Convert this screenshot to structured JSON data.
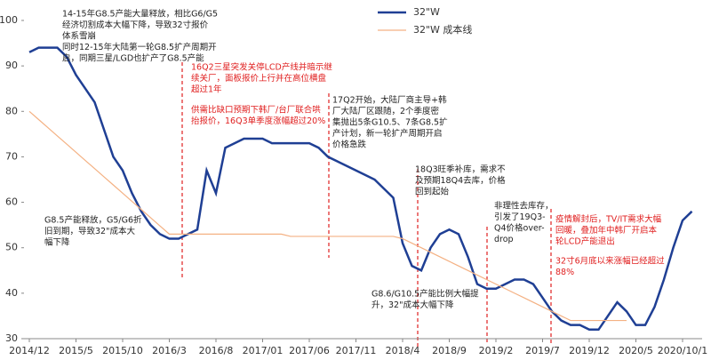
{
  "chart_data": {
    "type": "line",
    "categories": [
      "2014/12",
      null,
      null,
      null,
      null,
      "2015/5",
      null,
      null,
      null,
      null,
      "2015/10",
      null,
      null,
      null,
      null,
      "2016/3",
      null,
      null,
      null,
      null,
      "2016/8",
      null,
      null,
      null,
      null,
      "2017/01",
      null,
      null,
      null,
      null,
      "2017/06",
      null,
      null,
      null,
      null,
      "2017/11",
      null,
      null,
      null,
      null,
      "2018/4",
      null,
      null,
      null,
      null,
      "2018/9",
      null,
      null,
      null,
      null,
      "2019/2",
      null,
      null,
      null,
      null,
      "2019/7",
      null,
      null,
      null,
      null,
      "2019/12",
      null,
      null,
      null,
      null,
      "2020/5",
      null,
      null,
      null,
      null,
      "2020/10/1",
      null
    ],
    "series": [
      {
        "name": "32\"W",
        "color": "#1f3f94",
        "values": [
          93,
          94,
          94,
          94,
          92,
          88,
          85,
          82,
          76,
          70,
          67,
          62,
          58,
          55,
          53,
          52,
          52,
          53,
          54,
          67,
          62,
          72,
          73,
          74,
          74,
          74,
          73,
          73,
          73,
          73,
          73,
          72,
          70,
          69,
          68,
          67,
          66,
          65,
          63,
          61,
          51,
          46,
          45,
          50,
          53,
          54,
          53,
          48,
          42,
          41,
          41,
          42,
          43,
          43,
          42,
          39,
          36,
          34,
          33,
          33,
          32,
          32,
          35,
          38,
          36,
          33,
          33,
          37,
          43,
          50,
          56,
          58
        ]
      },
      {
        "name": "32\"W 成本线",
        "color": "#f4b183",
        "values": [
          80,
          78.2,
          76.4,
          74.6,
          72.8,
          71,
          69.2,
          67.4,
          65.6,
          63.8,
          62,
          60.2,
          58.4,
          56.6,
          54.8,
          53,
          53,
          53,
          53,
          53,
          53,
          53,
          53,
          53,
          53,
          53,
          53,
          53,
          52.5,
          52.5,
          52.5,
          52.5,
          52.5,
          52.5,
          52.5,
          52.5,
          52.5,
          52.5,
          52.5,
          52.5,
          52,
          51,
          50,
          49,
          48,
          47,
          46,
          45,
          44,
          43,
          42,
          41,
          40,
          39,
          38,
          37,
          36,
          35,
          34,
          34,
          34,
          34,
          34,
          34,
          34,
          null,
          null,
          null,
          null,
          null,
          null,
          null
        ]
      }
    ],
    "ylim": [
      30,
      100
    ],
    "yticks": [
      30,
      40,
      50,
      60,
      70,
      80,
      90,
      100
    ],
    "legend": "top-right",
    "annotations": [
      {
        "color": "#222222",
        "lines": [
          "14-15年G8.5产能大量释放，相比G6/G5",
          "经济切割成本大幅下降，导致32寸报价",
          "体系雪崩",
          "同时12-15年大陆第一轮G8.5扩产周期开",
          "启，同期三星/LGD也扩产了G8.5产能"
        ]
      },
      {
        "color": "#222222",
        "lines": [
          "G8.5产能释放，G5/G6折",
          "旧到期，导致32\"成本大",
          "幅下降"
        ]
      },
      {
        "color": "#e02020",
        "lines": [
          "16Q2三星突发关停LCD产线并暗示继",
          "续关厂，面板报价上行并在高位横盘",
          "超过1年"
        ]
      },
      {
        "color": "#e02020",
        "lines": [
          "供需比缺口预期下韩厂/台厂联合哄",
          "抬报价，16Q3单季度涨幅超过20%"
        ]
      },
      {
        "color": "#222222",
        "lines": [
          "17Q2开始，大陆厂商主导+韩",
          "厂大陆厂区跟随，2个季度密",
          "集抛出5条G10.5、7条G8.5扩",
          "产计划，新一轮扩产周期开启",
          "价格急跌"
        ]
      },
      {
        "color": "#222222",
        "lines": [
          "18Q3旺季补库，需求不",
          "及预期18Q4去库，价格",
          "回到起始"
        ]
      },
      {
        "color": "#222222",
        "lines": [
          "G8.6/G10.5产能比例大幅提",
          "升，32\"成本大幅下降"
        ]
      },
      {
        "color": "#222222",
        "lines": [
          "非理性去库存，",
          "引发了19Q3-",
          "Q4价格over-",
          "drop"
        ]
      },
      {
        "color": "#e02020",
        "lines": [
          "疫情解封后，TV/IT需求大幅",
          "回暖，叠加年中韩厂开启本",
          "轮LCD产能退出"
        ]
      },
      {
        "color": "#e02020",
        "lines": [
          "32寸6月底以来涨幅已经超过",
          "88%"
        ]
      }
    ]
  }
}
